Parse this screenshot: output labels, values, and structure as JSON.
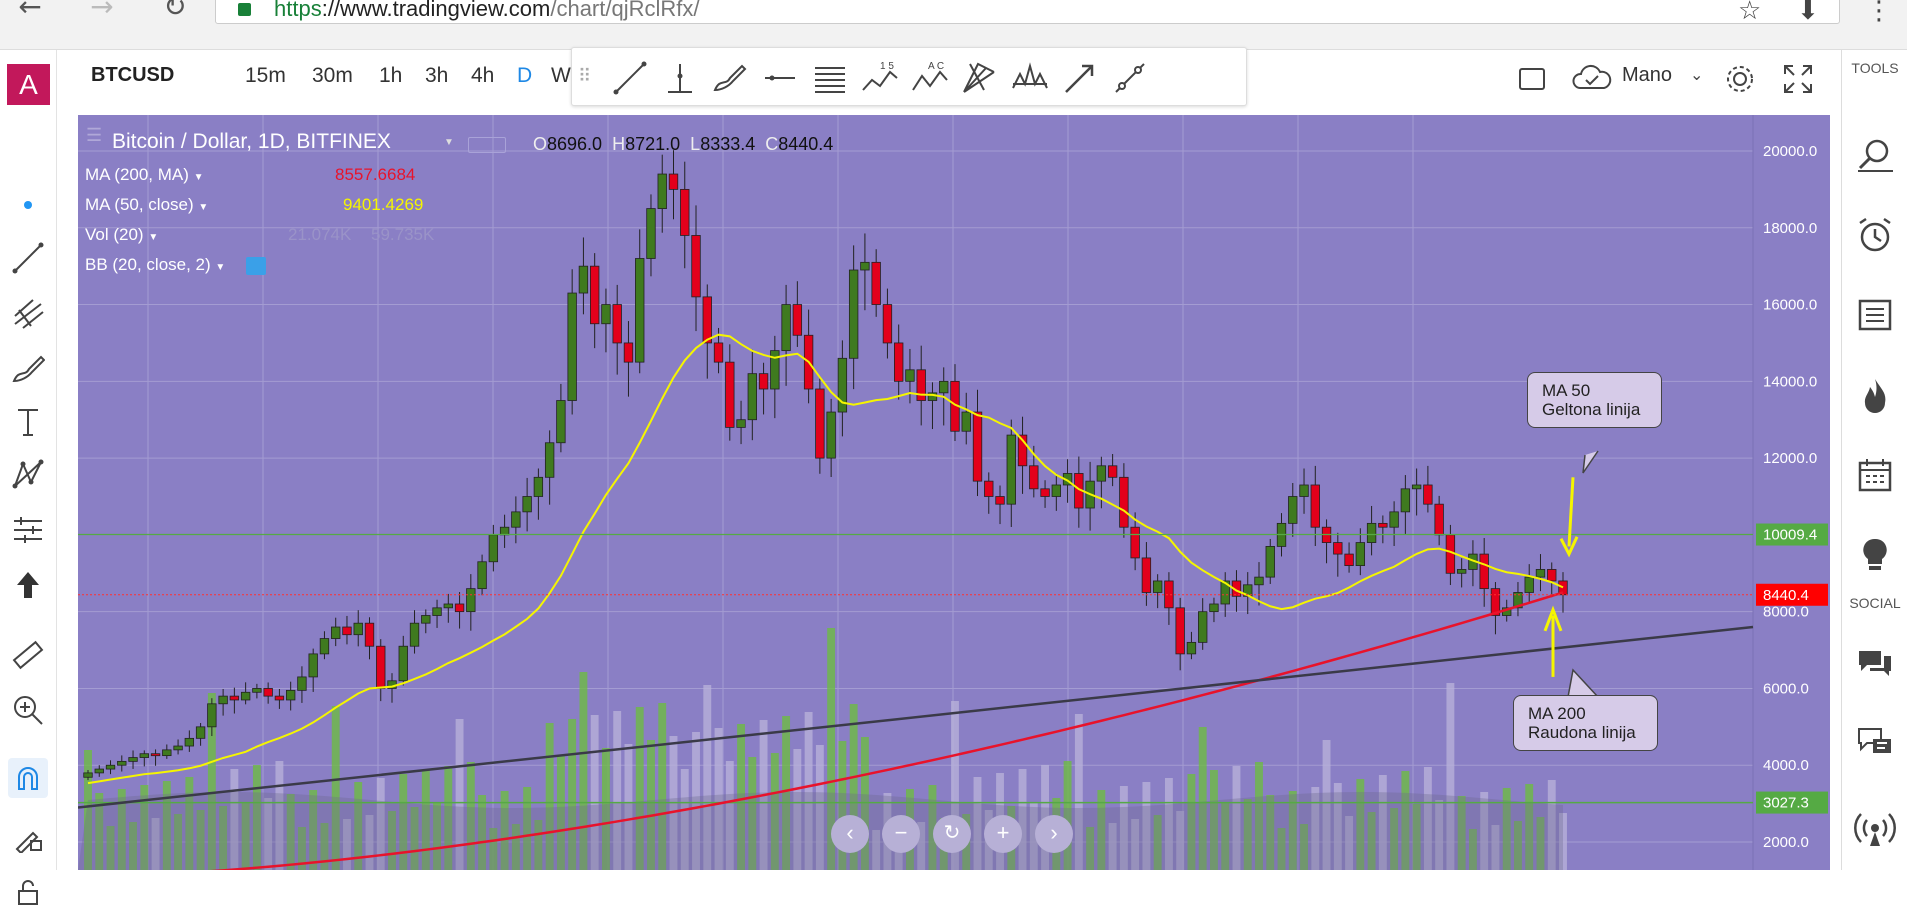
{
  "browser": {
    "url_protocol": "https",
    "url_host": "://www.tradingview.com",
    "url_path": "/chart/qjRclRfx/"
  },
  "left_toolbar": {
    "avatar_letter": "A"
  },
  "top_toolbar": {
    "symbol": "BTCUSD",
    "intervals": [
      "15m",
      "30m",
      "1h",
      "3h",
      "4h",
      "D",
      "W"
    ],
    "active_interval": "D",
    "template_label": "Mano"
  },
  "right_panel": {
    "tools_label": "TOOLS",
    "social_label": "SOCIAL"
  },
  "legend": {
    "title": "Bitcoin / Dollar, 1D, BITFINEX",
    "ohlc": {
      "o_label": "O",
      "o": "8696.0",
      "h_label": "H",
      "h": "8721.0",
      "l_label": "L",
      "l": "8333.4",
      "c_label": "C",
      "c": "8440.4"
    },
    "indicators": [
      {
        "name": "MA (200, MA)",
        "value": "8557.6684",
        "color": "#e8132b"
      },
      {
        "name": "MA (50, close)",
        "value": "9401.4269",
        "color": "#f5f500"
      },
      {
        "name": "Vol (20)",
        "value": "21.074K",
        "value2": "59.735K",
        "color": "#9a9ab0"
      },
      {
        "name": "BB (20, close, 2)",
        "value": "",
        "color": "#3aa0e8"
      }
    ]
  },
  "price_axis": {
    "labels": [
      "20000.0",
      "18000.0",
      "16000.0",
      "14000.0",
      "12000.0",
      "8000.0",
      "6000.0",
      "4000.0",
      "2000.0"
    ],
    "tags": [
      {
        "label": "10009.4",
        "color": "#55aa44"
      },
      {
        "label": "8440.4",
        "color": "#ff0000"
      },
      {
        "label": "3027.3",
        "color": "#55aa44"
      }
    ]
  },
  "annotations": {
    "ma50_line1": "MA 50",
    "ma50_line2": "Geltona linija",
    "ma200_line1": "MA 200",
    "ma200_line2": "Raudona linija"
  },
  "colors": {
    "chart_bg": "#8a7fc5",
    "up_candle": "#3f7a1f",
    "down_candle": "#e3001b",
    "ma50": "#f5f500",
    "ma200": "#e8132b",
    "trendline": "#3a3a48",
    "volume": "#6bbf3a"
  },
  "chart_data": {
    "type": "candlestick",
    "title": "Bitcoin / Dollar, 1D, BITFINEX",
    "ylim": [
      1500,
      20800
    ],
    "closes": [
      3800,
      3900,
      4000,
      4100,
      4200,
      4300,
      4250,
      4400,
      4500,
      4700,
      5000,
      5600,
      5800,
      5700,
      5900,
      6000,
      5800,
      5700,
      5950,
      6300,
      6900,
      7300,
      7600,
      7400,
      7700,
      7100,
      6000,
      6200,
      7100,
      7700,
      7900,
      8100,
      8200,
      8000,
      8600,
      9300,
      10000,
      10200,
      10600,
      11000,
      11500,
      12400,
      13500,
      16300,
      17000,
      15500,
      16000,
      15000,
      14500,
      17200,
      18500,
      19400,
      19000,
      17800,
      16200,
      15000,
      14500,
      12800,
      13000,
      14200,
      13800,
      14800,
      16000,
      15200,
      13800,
      12000,
      13200,
      14600,
      16900,
      17100,
      16000,
      15000,
      14000,
      14300,
      13500,
      13700,
      14000,
      12700,
      13200,
      11400,
      11000,
      10800,
      12600,
      11800,
      11200,
      11000,
      11300,
      11600,
      10700,
      11400,
      11800,
      11500,
      10200,
      9400,
      8500,
      8800,
      8100,
      6900,
      7200,
      8000,
      8200,
      8800,
      8400,
      8700,
      8900,
      9700,
      10300,
      11000,
      11300,
      10200,
      9800,
      9500,
      9200,
      9800,
      10300,
      10200,
      10600,
      11200,
      11300,
      10800,
      10000,
      9000,
      9100,
      9500,
      8600,
      7900,
      8100,
      8500,
      8900,
      9100,
      8800,
      8440
    ]
  }
}
